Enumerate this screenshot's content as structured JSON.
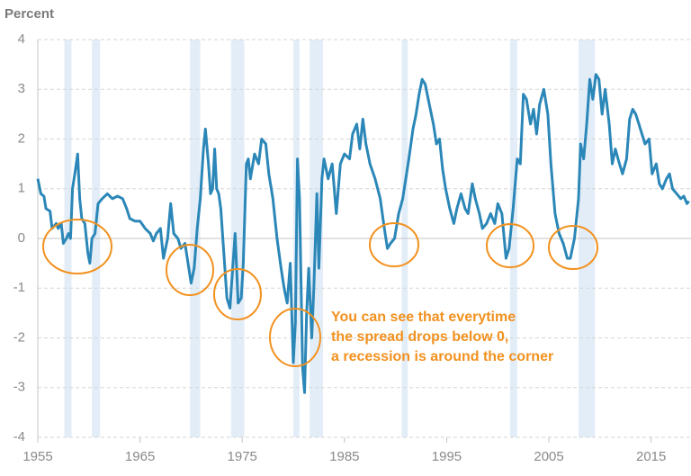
{
  "chart_data": {
    "type": "line",
    "y_label": "Percent",
    "color": "#2b87b8",
    "recession_color": "#e2edf8",
    "annotation_color": "#f2911f",
    "annotation": [
      "You can see that everytime",
      "the spread drops below 0,",
      "a recession is around the corner"
    ],
    "xlim": [
      1955,
      2018.9
    ],
    "xticks": [
      1955,
      1965,
      1975,
      1985,
      1995,
      2005,
      2015
    ],
    "ylim": [
      -4,
      4
    ],
    "yticks": [
      -4,
      -3,
      -2,
      -1,
      0,
      1,
      2,
      3,
      4
    ],
    "grid": true,
    "recessions": [
      [
        1957.6,
        1958.3
      ],
      [
        1960.3,
        1961.1
      ],
      [
        1969.9,
        1970.9
      ],
      [
        1973.9,
        1975.2
      ],
      [
        1980.0,
        1980.6
      ],
      [
        1981.6,
        1982.9
      ],
      [
        1990.6,
        1991.2
      ],
      [
        2001.2,
        2001.9
      ],
      [
        2007.9,
        2009.5
      ]
    ],
    "x": [
      1955.0,
      1955.3,
      1955.6,
      1955.8,
      1956.2,
      1956.4,
      1956.8,
      1957.0,
      1957.3,
      1957.5,
      1957.8,
      1958.0,
      1958.2,
      1958.4,
      1958.7,
      1958.9,
      1959.1,
      1959.3,
      1959.6,
      1959.9,
      1960.1,
      1960.3,
      1960.6,
      1960.9,
      1961.3,
      1961.8,
      1962.3,
      1962.8,
      1963.3,
      1963.7,
      1964.0,
      1964.5,
      1965.0,
      1965.5,
      1966.0,
      1966.3,
      1966.6,
      1967.0,
      1967.3,
      1967.7,
      1968.0,
      1968.3,
      1968.7,
      1969.0,
      1969.4,
      1969.7,
      1970.0,
      1970.3,
      1970.6,
      1970.9,
      1971.2,
      1971.4,
      1971.7,
      1971.9,
      1972.1,
      1972.3,
      1972.5,
      1972.7,
      1972.9,
      1973.2,
      1973.5,
      1973.8,
      1974.1,
      1974.3,
      1974.6,
      1974.9,
      1975.1,
      1975.4,
      1975.6,
      1975.8,
      1976.2,
      1976.6,
      1976.9,
      1977.3,
      1977.6,
      1978.0,
      1978.4,
      1978.8,
      1979.1,
      1979.4,
      1979.7,
      1980.0,
      1980.2,
      1980.4,
      1980.6,
      1980.9,
      1981.1,
      1981.3,
      1981.5,
      1981.8,
      1982.0,
      1982.3,
      1982.5,
      1982.8,
      1983.0,
      1983.4,
      1983.8,
      1984.2,
      1984.6,
      1985.0,
      1985.5,
      1985.8,
      1986.2,
      1986.5,
      1986.8,
      1987.1,
      1987.5,
      1988.0,
      1988.5,
      1988.9,
      1989.2,
      1989.5,
      1989.9,
      1990.3,
      1990.7,
      1991.0,
      1991.3,
      1991.7,
      1992.0,
      1992.3,
      1992.6,
      1992.9,
      1993.3,
      1993.7,
      1994.0,
      1994.3,
      1994.6,
      1994.9,
      1995.3,
      1995.7,
      1996.0,
      1996.4,
      1996.8,
      1997.1,
      1997.5,
      1997.8,
      1998.2,
      1998.5,
      1998.9,
      1999.3,
      1999.7,
      2000.0,
      2000.4,
      2000.8,
      2001.1,
      2001.5,
      2001.9,
      2002.2,
      2002.5,
      2002.8,
      2003.2,
      2003.5,
      2003.8,
      2004.1,
      2004.5,
      2004.9,
      2005.2,
      2005.6,
      2006.0,
      2006.4,
      2006.8,
      2007.1,
      2007.5,
      2007.9,
      2008.1,
      2008.4,
      2008.7,
      2009.0,
      2009.3,
      2009.6,
      2009.9,
      2010.2,
      2010.5,
      2010.9,
      2011.2,
      2011.5,
      2011.9,
      2012.2,
      2012.6,
      2012.9,
      2013.2,
      2013.5,
      2013.8,
      2014.1,
      2014.4,
      2014.8,
      2015.1,
      2015.5,
      2015.8,
      2016.1,
      2016.5,
      2016.8,
      2017.1,
      2017.5,
      2017.9,
      2018.2,
      2018.5,
      2018.7
    ],
    "values": [
      1.2,
      0.9,
      0.85,
      0.6,
      0.55,
      0.2,
      0.3,
      0.2,
      0.3,
      -0.1,
      0.0,
      0.1,
      0.0,
      1.0,
      1.4,
      1.7,
      0.8,
      0.4,
      0.3,
      -0.3,
      -0.5,
      0.0,
      0.1,
      0.7,
      0.8,
      0.9,
      0.8,
      0.85,
      0.8,
      0.6,
      0.4,
      0.35,
      0.35,
      0.2,
      0.1,
      -0.05,
      0.1,
      0.2,
      -0.4,
      0.0,
      0.7,
      0.1,
      0.0,
      -0.2,
      -0.1,
      -0.5,
      -0.9,
      -0.6,
      0.2,
      0.8,
      1.8,
      2.2,
      1.5,
      0.9,
      1.0,
      1.8,
      1.0,
      0.9,
      0.6,
      -0.3,
      -1.2,
      -1.4,
      -0.5,
      0.1,
      -1.3,
      -1.2,
      -0.5,
      1.5,
      1.6,
      1.2,
      1.7,
      1.5,
      2.0,
      1.9,
      1.3,
      0.8,
      0.0,
      -0.6,
      -1.0,
      -1.3,
      -0.5,
      -2.5,
      -1.7,
      1.6,
      0.8,
      -2.6,
      -3.1,
      -1.5,
      -0.6,
      -2.0,
      -1.0,
      0.9,
      -0.6,
      1.2,
      1.6,
      1.2,
      1.5,
      0.5,
      1.5,
      1.7,
      1.6,
      2.1,
      2.3,
      1.8,
      2.4,
      1.9,
      1.5,
      1.2,
      0.8,
      0.2,
      -0.2,
      -0.1,
      0.0,
      0.5,
      0.8,
      1.2,
      1.6,
      2.2,
      2.5,
      2.9,
      3.2,
      3.1,
      2.7,
      2.3,
      1.9,
      2.0,
      1.4,
      1.0,
      0.6,
      0.3,
      0.6,
      0.9,
      0.6,
      0.5,
      1.1,
      0.8,
      0.5,
      0.2,
      0.3,
      0.5,
      0.3,
      0.7,
      0.5,
      -0.4,
      -0.2,
      0.6,
      1.6,
      1.5,
      2.9,
      2.8,
      2.3,
      2.6,
      2.1,
      2.7,
      3.0,
      2.5,
      1.5,
      0.5,
      0.1,
      -0.1,
      -0.4,
      -0.4,
      0.0,
      0.8,
      1.9,
      1.6,
      2.3,
      3.2,
      2.8,
      3.3,
      3.2,
      2.5,
      3.0,
      2.3,
      1.5,
      1.8,
      1.5,
      1.3,
      1.6,
      2.4,
      2.6,
      2.5,
      2.3,
      2.1,
      1.9,
      2.0,
      1.3,
      1.5,
      1.1,
      1.0,
      1.2,
      1.3,
      1.0,
      0.9,
      0.8,
      0.85,
      0.7,
      0.75
    ]
  }
}
